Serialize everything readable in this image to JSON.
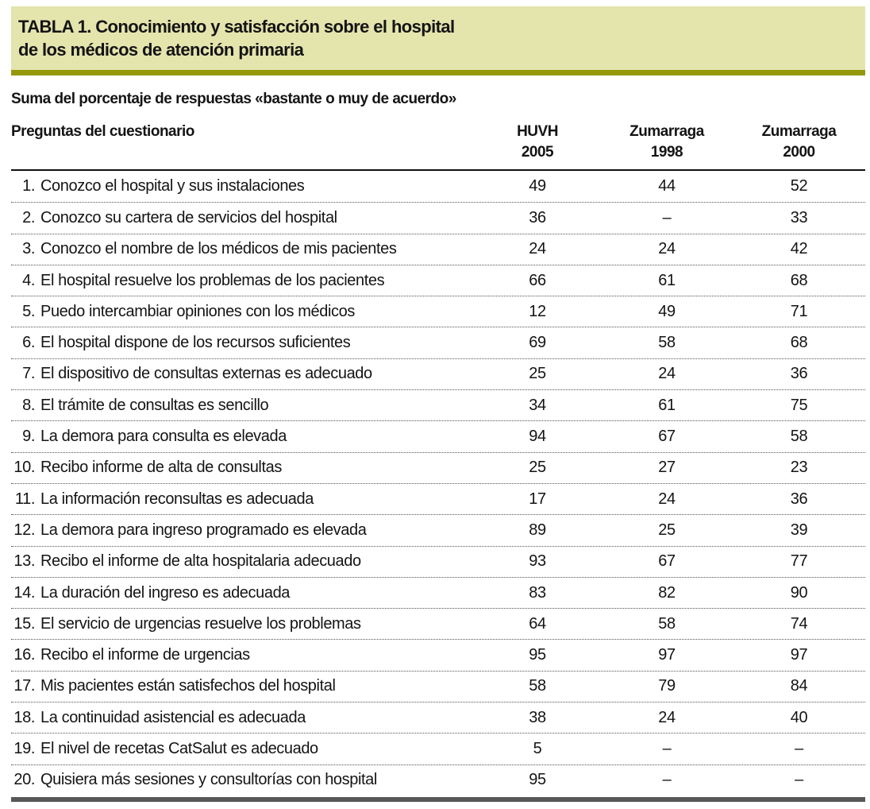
{
  "page": {
    "title_line1": "TABLA 1. Conocimiento y satisfacción sobre el hospital",
    "title_line2": "de los médicos de atención primaria",
    "subtitle": "Suma del porcentaje de respuestas «bastante o muy de acuerdo»"
  },
  "colors": {
    "title_bg": "#e4e4ad",
    "olive_rule": "#96980b",
    "bottom_bar": "#58585a",
    "text": "#141414"
  },
  "table": {
    "question_header": "Preguntas del cuestionario",
    "columns": [
      {
        "line1": "HUVH",
        "line2": "2005"
      },
      {
        "line1": "Zumarraga",
        "line2": "1998"
      },
      {
        "line1": "Zumarraga",
        "line2": "2000"
      }
    ],
    "rows": [
      {
        "num": "1.",
        "text": "Conozco el hospital y sus instalaciones",
        "values": [
          "49",
          "44",
          "52"
        ]
      },
      {
        "num": "2.",
        "text": "Conozco su cartera de servicios del hospital",
        "values": [
          "36",
          "–",
          "33"
        ]
      },
      {
        "num": "3.",
        "text": "Conozco el nombre de los médicos de mis pacientes",
        "values": [
          "24",
          "24",
          "42"
        ]
      },
      {
        "num": "4.",
        "text": "El hospital resuelve los problemas de los pacientes",
        "values": [
          "66",
          "61",
          "68"
        ]
      },
      {
        "num": "5.",
        "text": "Puedo intercambiar opiniones con los médicos",
        "values": [
          "12",
          "49",
          "71"
        ]
      },
      {
        "num": "6.",
        "text": "El hospital dispone de los recursos suficientes",
        "values": [
          "69",
          "58",
          "68"
        ]
      },
      {
        "num": "7.",
        "text": "El dispositivo de consultas externas es adecuado",
        "values": [
          "25",
          "24",
          "36"
        ]
      },
      {
        "num": "8.",
        "text": "El trámite de consultas es sencillo",
        "values": [
          "34",
          "61",
          "75"
        ]
      },
      {
        "num": "9.",
        "text": "La demora para consulta es elevada",
        "values": [
          "94",
          "67",
          "58"
        ]
      },
      {
        "num": "10.",
        "text": "Recibo informe de alta de consultas",
        "values": [
          "25",
          "27",
          "23"
        ]
      },
      {
        "num": "11.",
        "text": "La información reconsultas es adecuada",
        "values": [
          "17",
          "24",
          "36"
        ]
      },
      {
        "num": "12.",
        "text": "La demora para ingreso programado es elevada",
        "values": [
          "89",
          "25",
          "39"
        ]
      },
      {
        "num": "13.",
        "text": "Recibo el informe de alta hospitalaria adecuado",
        "values": [
          "93",
          "67",
          "77"
        ]
      },
      {
        "num": "14.",
        "text": "La duración del ingreso es adecuada",
        "values": [
          "83",
          "82",
          "90"
        ]
      },
      {
        "num": "15.",
        "text": "El servicio de urgencias resuelve los problemas",
        "values": [
          "64",
          "58",
          "74"
        ]
      },
      {
        "num": "16.",
        "text": "Recibo el informe de urgencias",
        "values": [
          "95",
          "97",
          "97"
        ]
      },
      {
        "num": "17.",
        "text": "Mis pacientes están satisfechos del hospital",
        "values": [
          "58",
          "79",
          "84"
        ]
      },
      {
        "num": "18.",
        "text": "La continuidad asistencial es adecuada",
        "values": [
          "38",
          "24",
          "40"
        ]
      },
      {
        "num": "19.",
        "text": "El nivel de recetas CatSalut es adecuado",
        "values": [
          "5",
          "–",
          "–"
        ]
      },
      {
        "num": "20.",
        "text": "Quisiera más sesiones y consultorías con hospital",
        "values": [
          "95",
          "–",
          "–"
        ]
      }
    ]
  }
}
